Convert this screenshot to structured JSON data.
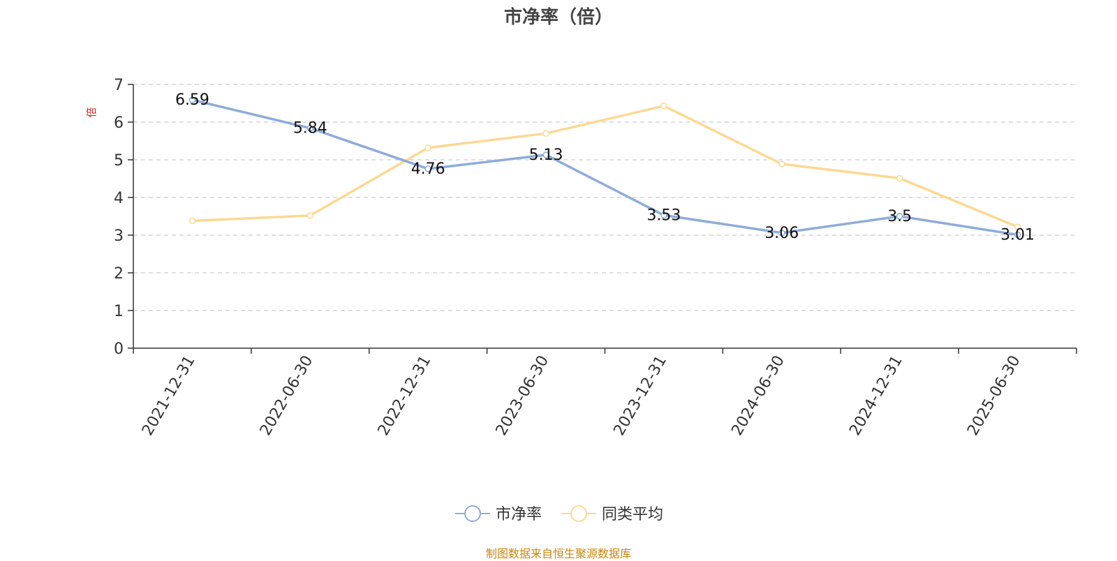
{
  "chart_data": {
    "type": "line",
    "title": "市净率（倍）",
    "ylabel": "倍",
    "ylim": [
      0,
      7
    ],
    "yticks": [
      0,
      1,
      2,
      3,
      4,
      5,
      6,
      7
    ],
    "grid": true,
    "legend_position": "bottom-center",
    "categories": [
      "2021-12-31",
      "2022-06-30",
      "2022-12-31",
      "2023-06-30",
      "2023-12-31",
      "2024-06-30",
      "2024-12-31",
      "2025-06-30"
    ],
    "series": [
      {
        "name": "市净率",
        "color": "#8eacd8",
        "show_labels": true,
        "values": [
          6.59,
          5.84,
          4.76,
          5.13,
          3.53,
          3.06,
          3.5,
          3.01
        ]
      },
      {
        "name": "同类平均",
        "color": "#fbd992",
        "show_labels": false,
        "values": [
          3.38,
          3.52,
          5.32,
          5.7,
          6.43,
          4.89,
          4.51,
          3.22
        ]
      }
    ]
  },
  "source_note": "制图数据来自恒生聚源数据库",
  "colors": {
    "title": "#444444",
    "axis": "#333333",
    "grid": "#cccccc",
    "ylabel": "#e02020",
    "source": "#c8860c"
  }
}
